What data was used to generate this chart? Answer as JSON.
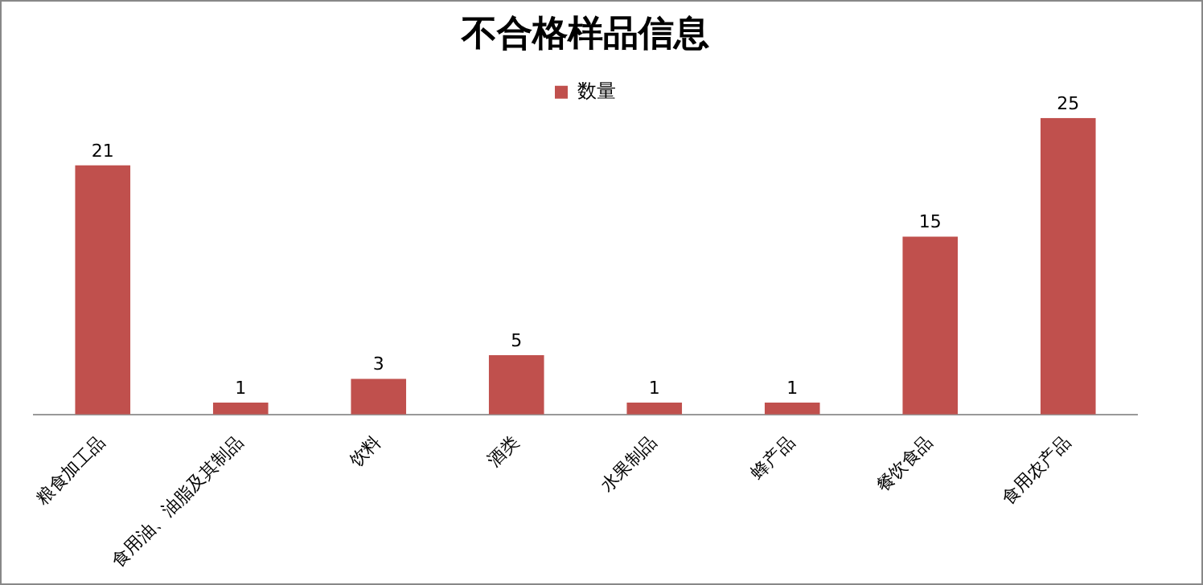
{
  "chart_data": {
    "type": "bar",
    "title": "不合格样品信息",
    "categories": [
      "粮食加工品",
      "食用油、油脂及其制品",
      "饮料",
      "酒类",
      "水果制品",
      "蜂产品",
      "餐饮食品",
      "食用农产品"
    ],
    "series": [
      {
        "name": "数量",
        "color": "#c0504d",
        "values": [
          21,
          1,
          3,
          5,
          1,
          1,
          15,
          25
        ]
      }
    ],
    "data_labels": true,
    "legend": "top",
    "tick_labels": "x"
  }
}
